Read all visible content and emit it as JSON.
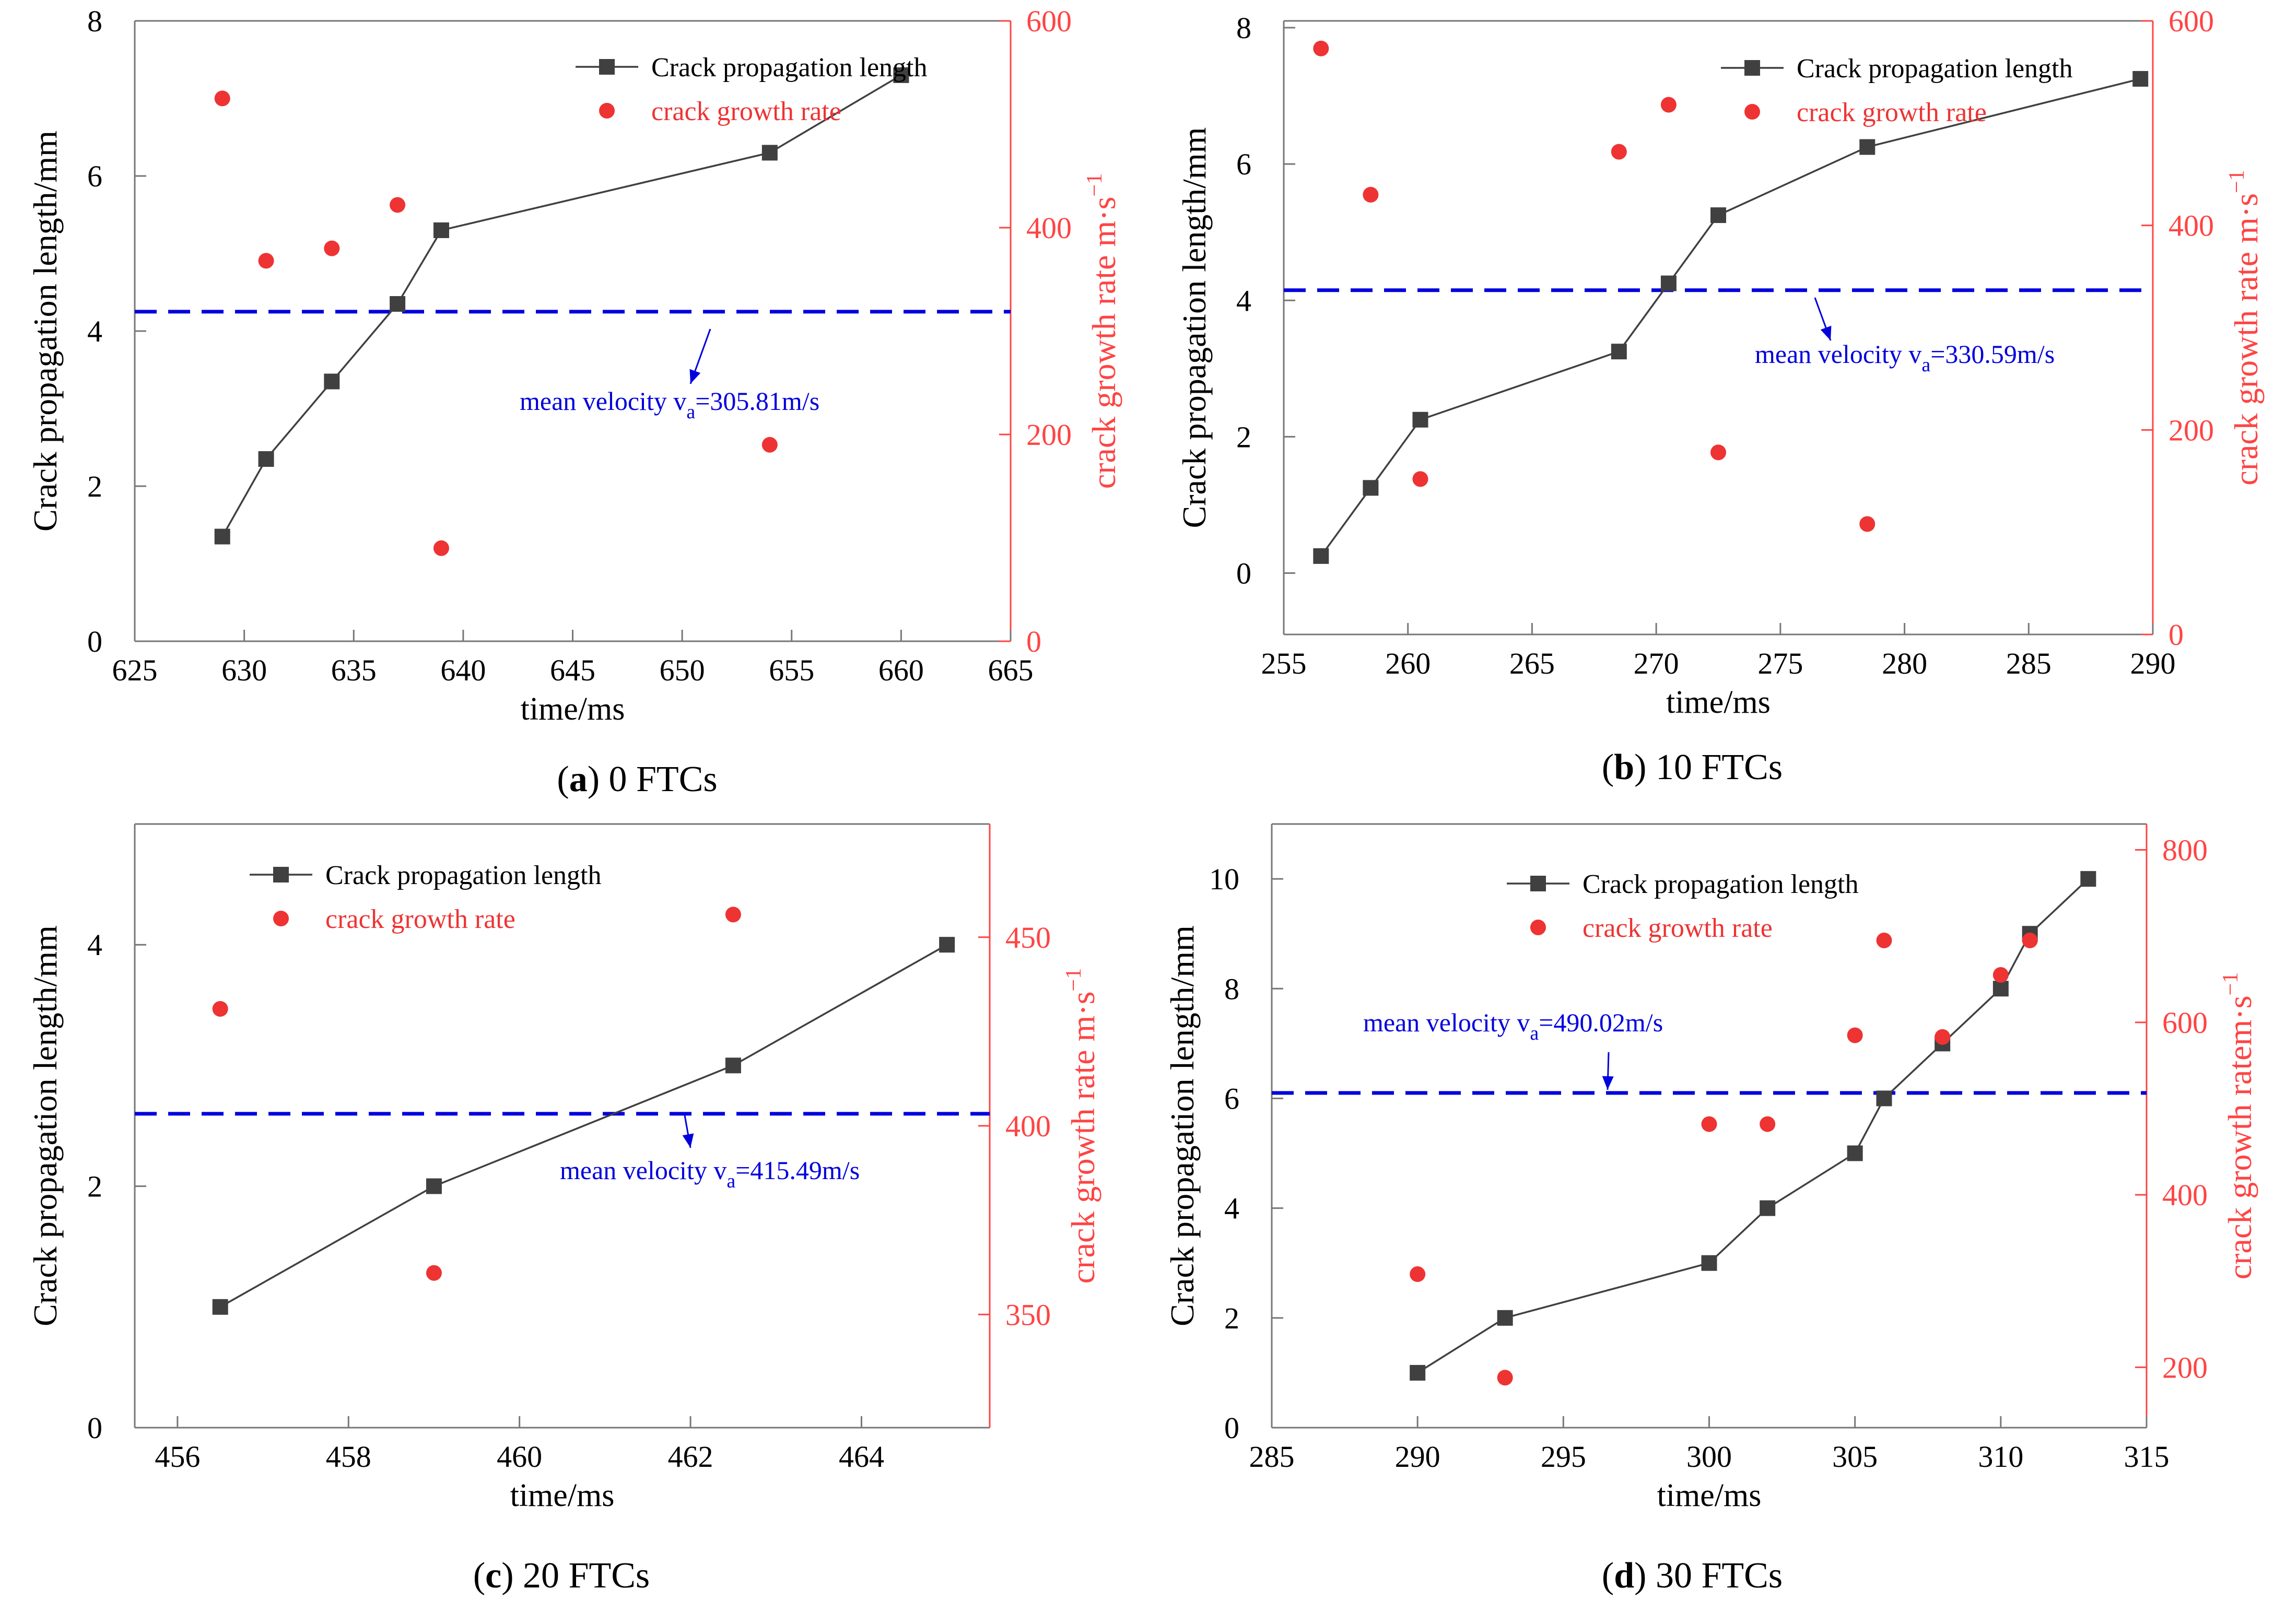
{
  "colors": {
    "length_line": "#404040",
    "rate_points": "#ee3333",
    "mean_line": "#0000dd",
    "axis": "#777777",
    "right_axis": "#ff4444",
    "text": "#000000"
  },
  "chart_data": [
    {
      "type": "line",
      "panel": "a",
      "caption_letter": "a",
      "caption_text": " 0 FTCs",
      "xlabel": "time/ms",
      "ylabel": "Crack propagation length/mm",
      "y2label": "crack growth rate m·s",
      "y2label_sup": "−1",
      "xlim": [
        625,
        665
      ],
      "ylim": [
        0,
        8
      ],
      "y2lim": [
        0,
        600
      ],
      "xticks": [
        625,
        630,
        635,
        640,
        645,
        650,
        655,
        660,
        665
      ],
      "yticks": [
        0,
        2,
        4,
        6,
        8
      ],
      "y2ticks": [
        0,
        200,
        400,
        600
      ],
      "legend": [
        "Crack propagation length",
        "crack growth rate"
      ],
      "legend_position": "top-right",
      "mean_velocity_prefix": "mean velocity v",
      "mean_velocity_sub": "a",
      "mean_velocity_value": "=305.81m/s",
      "mean_line_y": 4.25,
      "series": [
        {
          "name": "Crack propagation length",
          "axis": "left",
          "x": [
            629,
            631,
            634,
            637,
            639,
            654,
            660
          ],
          "y": [
            1.35,
            2.35,
            3.35,
            4.35,
            5.3,
            6.3,
            7.3
          ]
        },
        {
          "name": "crack growth rate",
          "axis": "right",
          "x": [
            629,
            631,
            634,
            637,
            639,
            654
          ],
          "y": [
            525,
            368,
            380,
            422,
            90,
            190
          ]
        }
      ]
    },
    {
      "type": "line",
      "panel": "b",
      "caption_letter": "b",
      "caption_text": " 10 FTCs",
      "xlabel": "time/ms",
      "ylabel": "Crack propagation length/mm",
      "y2label": "crack growth rate m·s",
      "y2label_sup": "−1",
      "xlim": [
        255,
        290
      ],
      "ylim": [
        -0.9,
        8.1
      ],
      "y2lim": [
        0,
        600
      ],
      "xticks": [
        255,
        260,
        265,
        270,
        275,
        280,
        285,
        290
      ],
      "yticks": [
        0,
        2,
        4,
        6,
        8
      ],
      "y2ticks": [
        0,
        200,
        400,
        600
      ],
      "legend": [
        "Crack propagation length",
        "crack growth rate"
      ],
      "legend_position": "top-right",
      "mean_velocity_prefix": "mean velocity v",
      "mean_velocity_sub": "a",
      "mean_velocity_value": "=330.59m/s",
      "mean_line_y": 4.15,
      "series": [
        {
          "name": "Crack propagation length",
          "axis": "left",
          "x": [
            256.5,
            258.5,
            260.5,
            268.5,
            270.5,
            272.5,
            278.5,
            289.5
          ],
          "y": [
            0.25,
            1.25,
            2.25,
            3.25,
            4.25,
            5.25,
            6.25,
            7.25
          ]
        },
        {
          "name": "crack growth rate",
          "axis": "right",
          "x": [
            256.5,
            258.5,
            260.5,
            268.5,
            270.5,
            272.5,
            278.5
          ],
          "y": [
            573,
            430,
            152,
            472,
            518,
            178,
            108
          ]
        }
      ]
    },
    {
      "type": "line",
      "panel": "c",
      "caption_letter": "c",
      "caption_text": " 20 FTCs",
      "xlabel": "time/ms",
      "ylabel": "Crack propagation length/mm",
      "y2label": "crack growth rate m·s",
      "y2label_sup": "−1",
      "xlim": [
        455.5,
        465.5
      ],
      "ylim": [
        0,
        5
      ],
      "y2lim": [
        320,
        480
      ],
      "xticks": [
        456,
        458,
        460,
        462,
        464
      ],
      "yticks": [
        0,
        2,
        4
      ],
      "y2ticks": [
        350,
        400,
        450
      ],
      "legend": [
        "Crack propagation length",
        "crack growth rate"
      ],
      "legend_position": "top-left",
      "mean_velocity_prefix": "mean velocity v",
      "mean_velocity_sub": "a",
      "mean_velocity_value": "=415.49m/s",
      "mean_line_y": 2.6,
      "series": [
        {
          "name": "Crack propagation length",
          "axis": "left",
          "x": [
            456.5,
            459,
            462.5,
            465
          ],
          "y": [
            1,
            2,
            3,
            4
          ]
        },
        {
          "name": "crack growth rate",
          "axis": "right",
          "x": [
            456.5,
            459,
            462.5
          ],
          "y": [
            431,
            361,
            456
          ]
        }
      ]
    },
    {
      "type": "line",
      "panel": "d",
      "caption_letter": "d",
      "caption_text": " 30 FTCs",
      "xlabel": "time/ms",
      "ylabel": "Crack propagation length/mm",
      "y2label": "crack growth ratem·s",
      "y2label_sup": "−1",
      "xlim": [
        285,
        315
      ],
      "ylim": [
        0,
        11
      ],
      "y2lim": [
        130,
        830
      ],
      "xticks": [
        285,
        290,
        295,
        300,
        305,
        310,
        315
      ],
      "yticks": [
        0,
        2,
        4,
        6,
        8,
        10
      ],
      "y2ticks": [
        200,
        400,
        600,
        800
      ],
      "legend": [
        "Crack propagation length",
        "crack growth rate"
      ],
      "legend_position": "top-center",
      "mean_velocity_prefix": "mean velocity v",
      "mean_velocity_sub": "a",
      "mean_velocity_value": "=490.02m/s",
      "mean_line_y": 6.1,
      "series": [
        {
          "name": "Crack propagation length",
          "axis": "left",
          "x": [
            290,
            293,
            300,
            302,
            305,
            306,
            308,
            310,
            311,
            313
          ],
          "y": [
            1,
            2,
            3,
            4,
            5,
            6,
            7,
            8,
            9,
            10
          ]
        },
        {
          "name": "crack growth rate",
          "axis": "right",
          "x": [
            290,
            293,
            300,
            302,
            305,
            306,
            308,
            310,
            311
          ],
          "y": [
            308,
            188,
            482,
            482,
            585,
            695,
            583,
            655,
            695
          ]
        }
      ]
    }
  ]
}
